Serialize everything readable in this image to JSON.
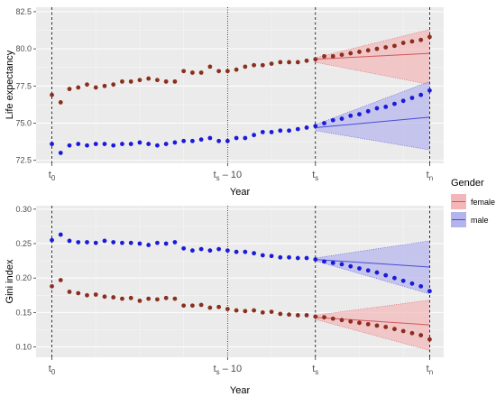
{
  "colors": {
    "panel_bg": "#ebebeb",
    "grid_major": "#ffffff",
    "female_line": "#d4565b",
    "female_band": "#f4b6b8",
    "male_line": "#4b4bd6",
    "male_band": "#b3b3ee",
    "female_points": "#8b2e1d",
    "male_points": "#1a1adb"
  },
  "legend": {
    "title": "Gender",
    "items": [
      {
        "label": "female",
        "color": "#d4565b"
      },
      {
        "label": "male",
        "color": "#4b4bd6"
      }
    ]
  },
  "time_markers": [
    {
      "key": "t0",
      "main": "t",
      "sub": "0",
      "x": 0,
      "line": "dashed"
    },
    {
      "key": "ts10",
      "main": "t",
      "sub": "s",
      "suffix": " – 10",
      "x": 20,
      "line": "dotted"
    },
    {
      "key": "ts",
      "main": "t",
      "sub": "s",
      "x": 30,
      "line": "dashed"
    },
    {
      "key": "tn",
      "main": "t",
      "sub": "n",
      "x": 43,
      "line": "dashed"
    }
  ],
  "chart_data": [
    {
      "type": "scatter",
      "ylabel": "Life expectancy",
      "xlabel": "Year",
      "ylim": [
        72.3,
        82.8
      ],
      "yticks": [
        "72.5",
        "75.0",
        "77.5",
        "80.0",
        "82.5"
      ],
      "series": [
        {
          "name": "female",
          "x": [
            0,
            1,
            2,
            3,
            4,
            5,
            6,
            7,
            8,
            9,
            10,
            11,
            12,
            13,
            14,
            15,
            16,
            17,
            18,
            19,
            20,
            21,
            22,
            23,
            24,
            25,
            26,
            27,
            28,
            29,
            30
          ],
          "y": [
            76.9,
            76.4,
            77.3,
            77.4,
            77.6,
            77.4,
            77.5,
            77.6,
            77.8,
            77.8,
            77.9,
            78.0,
            77.9,
            77.8,
            77.8,
            78.5,
            78.4,
            78.4,
            78.8,
            78.5,
            78.5,
            78.6,
            78.8,
            78.9,
            78.9,
            79.0,
            79.1,
            79.1,
            79.1,
            79.2,
            79.3
          ],
          "forecast_x": [
            31,
            32,
            33,
            34,
            35,
            36,
            37,
            38,
            39,
            40,
            41,
            42,
            43
          ],
          "forecast_y": [
            79.5,
            79.5,
            79.6,
            79.7,
            79.8,
            79.9,
            80.0,
            80.1,
            80.2,
            80.4,
            80.5,
            80.6,
            80.8
          ],
          "trend": [
            [
              30,
              79.3
            ],
            [
              43,
              79.7
            ]
          ],
          "band_upper": [
            [
              30,
              79.4
            ],
            [
              43,
              81.3
            ]
          ],
          "band_lower": [
            [
              30,
              79.1
            ],
            [
              43,
              77.6
            ]
          ]
        },
        {
          "name": "male",
          "x": [
            0,
            1,
            2,
            3,
            4,
            5,
            6,
            7,
            8,
            9,
            10,
            11,
            12,
            13,
            14,
            15,
            16,
            17,
            18,
            19,
            20,
            21,
            22,
            23,
            24,
            25,
            26,
            27,
            28,
            29,
            30
          ],
          "y": [
            73.6,
            73.0,
            73.5,
            73.6,
            73.5,
            73.6,
            73.6,
            73.5,
            73.6,
            73.6,
            73.7,
            73.6,
            73.5,
            73.6,
            73.7,
            73.8,
            73.8,
            73.9,
            74.0,
            73.8,
            73.8,
            74.0,
            74.0,
            74.2,
            74.4,
            74.4,
            74.5,
            74.5,
            74.6,
            74.7,
            74.8
          ],
          "forecast_x": [
            31,
            32,
            33,
            34,
            35,
            36,
            37,
            38,
            39,
            40,
            41,
            42,
            43
          ],
          "forecast_y": [
            75.0,
            75.2,
            75.3,
            75.5,
            75.6,
            75.8,
            76.0,
            76.1,
            76.3,
            76.5,
            76.7,
            76.9,
            77.2
          ],
          "trend": [
            [
              30,
              74.7
            ],
            [
              43,
              75.4
            ]
          ],
          "band_upper": [
            [
              30,
              74.9
            ],
            [
              43,
              77.8
            ]
          ],
          "band_lower": [
            [
              30,
              74.5
            ],
            [
              43,
              73.2
            ]
          ]
        }
      ]
    },
    {
      "type": "scatter",
      "ylabel": "Gini index",
      "xlabel": "Year",
      "ylim": [
        0.085,
        0.305
      ],
      "yticks": [
        "0.10",
        "0.15",
        "0.20",
        "0.25",
        "0.30"
      ],
      "series": [
        {
          "name": "female",
          "x": [
            0,
            1,
            2,
            3,
            4,
            5,
            6,
            7,
            8,
            9,
            10,
            11,
            12,
            13,
            14,
            15,
            16,
            17,
            18,
            19,
            20,
            21,
            22,
            23,
            24,
            25,
            26,
            27,
            28,
            29,
            30
          ],
          "y": [
            0.188,
            0.197,
            0.18,
            0.178,
            0.175,
            0.176,
            0.173,
            0.172,
            0.17,
            0.171,
            0.167,
            0.17,
            0.169,
            0.171,
            0.17,
            0.16,
            0.16,
            0.161,
            0.157,
            0.158,
            0.155,
            0.153,
            0.152,
            0.153,
            0.15,
            0.151,
            0.148,
            0.147,
            0.146,
            0.146,
            0.144
          ],
          "forecast_x": [
            31,
            32,
            33,
            34,
            35,
            36,
            37,
            38,
            39,
            40,
            41,
            42,
            43
          ],
          "forecast_y": [
            0.143,
            0.141,
            0.139,
            0.137,
            0.135,
            0.133,
            0.131,
            0.129,
            0.126,
            0.123,
            0.12,
            0.117,
            0.111
          ],
          "trend": [
            [
              30,
              0.143
            ],
            [
              43,
              0.132
            ]
          ],
          "band_upper": [
            [
              30,
              0.146
            ],
            [
              43,
              0.168
            ]
          ],
          "band_lower": [
            [
              30,
              0.14
            ],
            [
              43,
              0.095
            ]
          ]
        },
        {
          "name": "male",
          "x": [
            0,
            1,
            2,
            3,
            4,
            5,
            6,
            7,
            8,
            9,
            10,
            11,
            12,
            13,
            14,
            15,
            16,
            17,
            18,
            19,
            20,
            21,
            22,
            23,
            24,
            25,
            26,
            27,
            28,
            29,
            30
          ],
          "y": [
            0.255,
            0.263,
            0.254,
            0.252,
            0.252,
            0.251,
            0.254,
            0.252,
            0.251,
            0.251,
            0.25,
            0.248,
            0.251,
            0.25,
            0.252,
            0.243,
            0.24,
            0.242,
            0.24,
            0.242,
            0.24,
            0.238,
            0.238,
            0.236,
            0.233,
            0.232,
            0.23,
            0.23,
            0.229,
            0.229,
            0.227
          ],
          "forecast_x": [
            31,
            32,
            33,
            34,
            35,
            36,
            37,
            38,
            39,
            40,
            41,
            42,
            43
          ],
          "forecast_y": [
            0.224,
            0.222,
            0.22,
            0.217,
            0.214,
            0.211,
            0.208,
            0.204,
            0.2,
            0.196,
            0.192,
            0.188,
            0.181
          ],
          "trend": [
            [
              30,
              0.227
            ],
            [
              43,
              0.216
            ]
          ],
          "band_upper": [
            [
              30,
              0.229
            ],
            [
              43,
              0.254
            ]
          ],
          "band_lower": [
            [
              30,
              0.225
            ],
            [
              43,
              0.177
            ]
          ]
        }
      ]
    }
  ]
}
